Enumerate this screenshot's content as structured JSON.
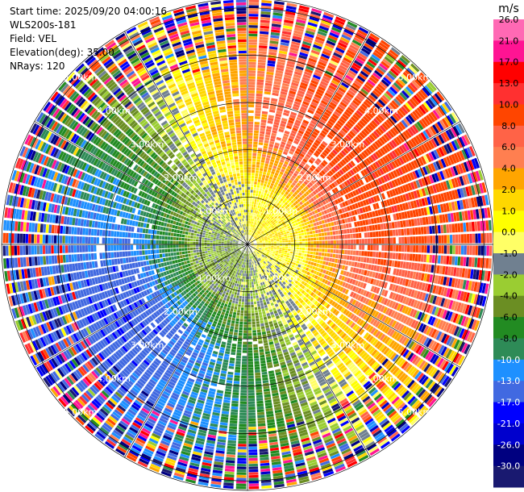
{
  "header": {
    "start_time": "Start time: 2025/09/20 04:00:16",
    "instrument": "WLS200s-181",
    "field": "Field: VEL",
    "elevation": "Elevation(deg): 35.00",
    "nrays": "NRays: 120"
  },
  "colorbar": {
    "title": "m/s",
    "ticks": [
      "26.0",
      "21.0",
      "17.0",
      "13.0",
      "10.0",
      "8.0",
      "6.0",
      "4.0",
      "2.0",
      "1.0",
      "0.0",
      "-1.0",
      "-2.0",
      "-4.0",
      "-6.0",
      "-8.0",
      "-10.0",
      "-13.0",
      "-17.0",
      "-21.0",
      "-26.0",
      "-30.0"
    ],
    "colors": [
      "#ff69b4",
      "#ff1493",
      "#ff0000",
      "#ff3030",
      "#ff4500",
      "#ff6347",
      "#ff7f50",
      "#ffa500",
      "#ffd700",
      "#ffff00",
      "#ffff66",
      "#708090",
      "#9acd32",
      "#6b8e23",
      "#228b22",
      "#2e8b57",
      "#1e90ff",
      "#4169e1",
      "#0000ff",
      "#0000cd",
      "#000080",
      "#191970"
    ]
  },
  "chart_data": {
    "type": "heatmap",
    "projection": "polar-ppi",
    "field": "VEL",
    "units": "m/s",
    "nrays": 120,
    "range_rings": [
      {
        "km": 1.0,
        "label": "1.00km"
      },
      {
        "km": 2.0,
        "label": "2.00km"
      },
      {
        "km": 3.0,
        "label": "3.00km"
      },
      {
        "km": 4.0,
        "label": "4.00km"
      },
      {
        "km": 5.0,
        "label": "5.00km"
      }
    ],
    "max_range_km": 5.2,
    "radial_lines_deg": [
      0,
      30,
      60,
      90,
      120,
      150,
      180,
      210,
      240,
      270,
      300,
      330
    ],
    "value_range": [
      -30,
      26
    ],
    "pattern": {
      "positive_azimuth_deg": 60,
      "amplitude_ms": 12.0,
      "near_zero_radius_km": 1.3,
      "noise_start_km": 3.8
    }
  }
}
